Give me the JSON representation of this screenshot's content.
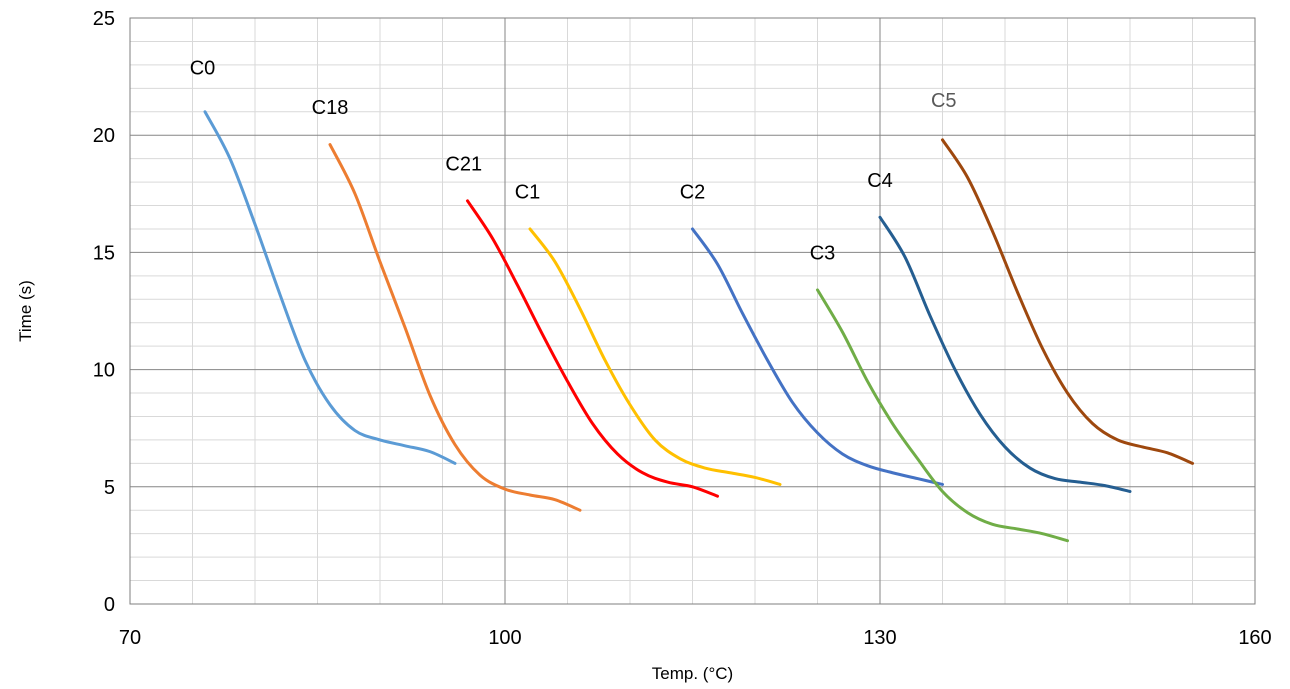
{
  "chart_data": {
    "type": "line",
    "title": "",
    "xlabel": "Temp. (°C)",
    "ylabel": "Time (s)",
    "xlim": [
      70,
      160
    ],
    "ylim": [
      0,
      25
    ],
    "x_ticks": [
      70,
      100,
      130,
      160
    ],
    "y_ticks": [
      0,
      5,
      10,
      15,
      20,
      25
    ],
    "x_minor_step": 5,
    "y_minor_step": 1,
    "grid": true,
    "legend": "none",
    "series": [
      {
        "name": "C0",
        "color": "#5b9bd5",
        "x": [
          76,
          78,
          80,
          82,
          84,
          86,
          88,
          90,
          92,
          94,
          96
        ],
        "y": [
          21.0,
          19.0,
          16.2,
          13.2,
          10.4,
          8.5,
          7.4,
          7.0,
          6.75,
          6.5,
          6.0
        ]
      },
      {
        "name": "C18",
        "color": "#ed7d31",
        "x": [
          86,
          88,
          90,
          92,
          94,
          96,
          98,
          100,
          102,
          104,
          106
        ],
        "y": [
          19.6,
          17.5,
          14.6,
          11.8,
          8.9,
          6.8,
          5.5,
          4.9,
          4.65,
          4.45,
          4.0
        ]
      },
      {
        "name": "C21",
        "color": "#ff0000",
        "x": [
          97,
          99,
          101,
          103,
          105,
          107,
          109,
          111,
          113,
          115,
          117
        ],
        "y": [
          17.2,
          15.6,
          13.6,
          11.5,
          9.5,
          7.7,
          6.4,
          5.6,
          5.2,
          5.0,
          4.6
        ]
      },
      {
        "name": "C1",
        "color": "#ffc000",
        "x": [
          102,
          104,
          106,
          108,
          110,
          112,
          114,
          116,
          118,
          120,
          122
        ],
        "y": [
          16.0,
          14.6,
          12.6,
          10.4,
          8.5,
          7.0,
          6.2,
          5.8,
          5.6,
          5.4,
          5.1
        ]
      },
      {
        "name": "C2",
        "color": "#4472c4",
        "x": [
          115,
          117,
          119,
          121,
          123,
          125,
          127,
          129,
          131,
          133,
          135
        ],
        "y": [
          16.0,
          14.5,
          12.4,
          10.4,
          8.6,
          7.3,
          6.4,
          5.9,
          5.6,
          5.35,
          5.1
        ]
      },
      {
        "name": "C3",
        "color": "#70ad47",
        "x": [
          125,
          127,
          129,
          131,
          133,
          135,
          137,
          139,
          141,
          143,
          145
        ],
        "y": [
          13.4,
          11.6,
          9.5,
          7.7,
          6.2,
          4.8,
          3.9,
          3.4,
          3.2,
          3.0,
          2.7
        ]
      },
      {
        "name": "C4",
        "color": "#255e91",
        "x": [
          130,
          132,
          134,
          136,
          138,
          140,
          142,
          144,
          146,
          148,
          150
        ],
        "y": [
          16.5,
          14.8,
          12.3,
          10.0,
          8.1,
          6.7,
          5.8,
          5.35,
          5.2,
          5.05,
          4.8
        ]
      },
      {
        "name": "C5",
        "color": "#9e480e",
        "x": [
          135,
          137,
          139,
          141,
          143,
          145,
          147,
          149,
          151,
          153,
          155
        ],
        "y": [
          19.8,
          18.2,
          15.9,
          13.3,
          10.9,
          9.0,
          7.7,
          7.0,
          6.7,
          6.45,
          6.0
        ]
      }
    ],
    "annotations": [
      {
        "text": "C0",
        "color": "#000000",
        "x": 75.8,
        "y": 22.6
      },
      {
        "text": "C18",
        "color": "#000000",
        "x": 86.0,
        "y": 20.9
      },
      {
        "text": "C21",
        "color": "#000000",
        "x": 96.7,
        "y": 18.5
      },
      {
        "text": "C1",
        "color": "#000000",
        "x": 101.8,
        "y": 17.3
      },
      {
        "text": "C2",
        "color": "#000000",
        "x": 115.0,
        "y": 17.3
      },
      {
        "text": "C3",
        "color": "#000000",
        "x": 125.4,
        "y": 14.7
      },
      {
        "text": "C4",
        "color": "#000000",
        "x": 130.0,
        "y": 17.8
      },
      {
        "text": "C5",
        "color": "#595959",
        "x": 135.1,
        "y": 21.2
      }
    ]
  }
}
